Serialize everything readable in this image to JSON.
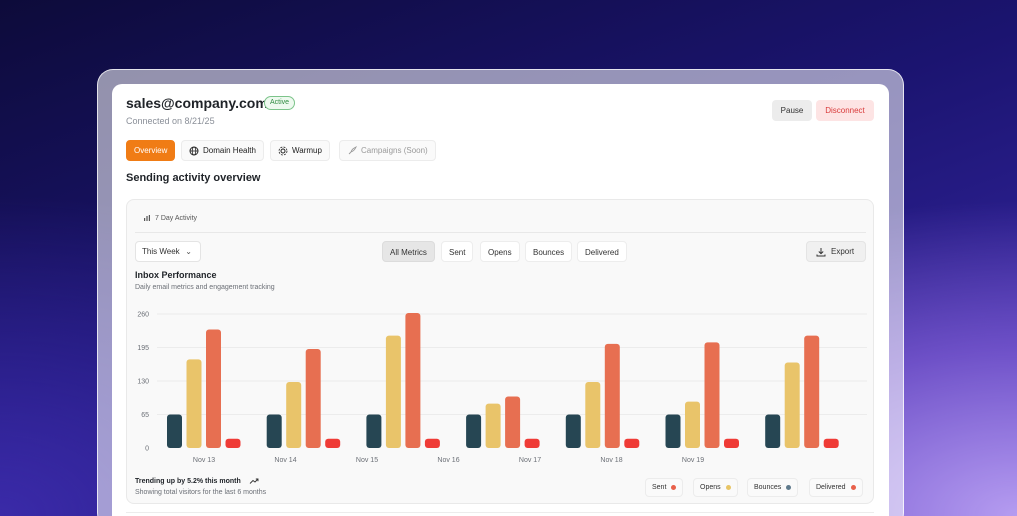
{
  "account": {
    "email": "sales@company.com",
    "status": "Active",
    "connected": "Connected on 8/21/25",
    "pause_label": "Pause",
    "disconnect_label": "Disconnect"
  },
  "tabs": [
    {
      "label": "Overview",
      "icon": "none"
    },
    {
      "label": "Domain Health",
      "icon": "globe-icon"
    },
    {
      "label": "Warmup",
      "icon": "warmup-icon"
    },
    {
      "label": "Campaigns (Soon)",
      "icon": "rocket-icon"
    }
  ],
  "section_title": "Sending activity overview",
  "card": {
    "header": "7 Day Activity",
    "period": "This Week",
    "filters": [
      "All Metrics",
      "Sent",
      "Opens",
      "Bounces",
      "Delivered"
    ],
    "export_label": "Export",
    "chart_title": "Inbox Performance",
    "chart_subtitle": "Daily email metrics and engagement tracking",
    "trend": "Trending up by 5.2% this month",
    "trend_sub": "Showing total visitors for the last 6 months"
  },
  "legend": [
    {
      "label": "Sent",
      "color": "#e8604a"
    },
    {
      "label": "Opens",
      "color": "#e8c565"
    },
    {
      "label": "Bounces",
      "color": "#5f7a8c"
    },
    {
      "label": "Delivered",
      "color": "#e8604a"
    }
  ],
  "chart_data": {
    "type": "bar",
    "categories": [
      "Nov 13",
      "Nov 14",
      "Nov 15",
      "Nov 16",
      "Nov 17",
      "Nov 18",
      "Nov 19"
    ],
    "yticks": [
      0,
      65,
      130,
      195,
      260
    ],
    "ylim": [
      0,
      260
    ],
    "series": [
      {
        "color": "#264653",
        "values": [
          65,
          65,
          65,
          65,
          65,
          65,
          65
        ]
      },
      {
        "color": "#e9c46a",
        "values": [
          172,
          128,
          218,
          86,
          128,
          90,
          166
        ]
      },
      {
        "color": "#e76f51",
        "values": [
          230,
          192,
          262,
          100,
          202,
          205,
          218
        ]
      },
      {
        "color": "#ef3b36",
        "values": [
          18,
          18,
          18,
          18,
          18,
          18,
          18
        ]
      }
    ]
  }
}
